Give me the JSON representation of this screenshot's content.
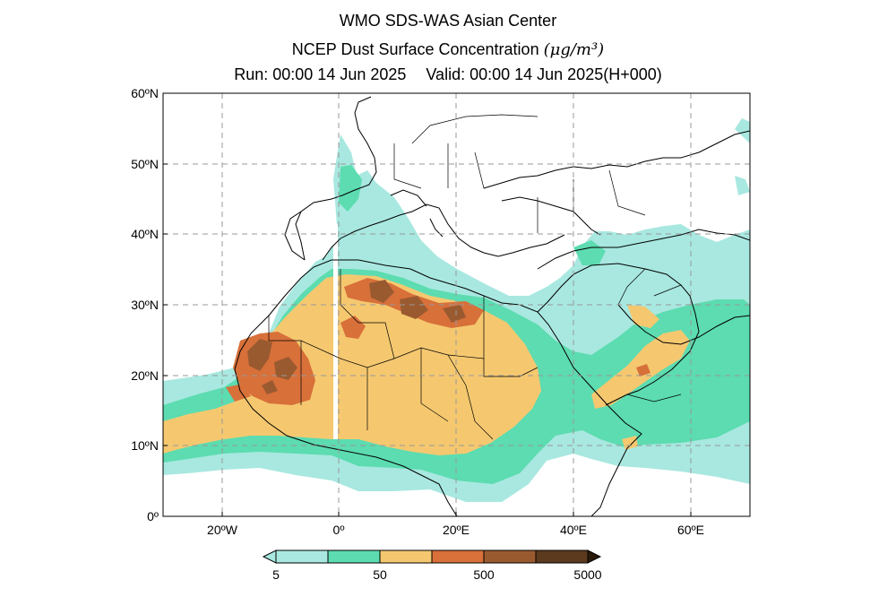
{
  "header": {
    "line1": "WMO SDS-WAS Asian Center",
    "line2_prefix": "NCEP Dust Surface Concentration ",
    "line2_unit": "(μg/m³)",
    "run": "Run: 00:00 14 Jun 2025",
    "valid": "Valid: 00:00 14 Jun 2025(H+000)"
  },
  "map": {
    "lon_range": [
      -30,
      70
    ],
    "lat_range": [
      0,
      60
    ],
    "grid": "dashed",
    "lat_labels": [
      "60ºN",
      "50ºN",
      "40ºN",
      "30ºN",
      "20ºN",
      "10ºN",
      "0º"
    ],
    "lon_labels": [
      "20ºW",
      "0º",
      "20ºE",
      "40ºE",
      "60ºE"
    ]
  },
  "colorbar": {
    "labels": [
      "5",
      "50",
      "500",
      "5000"
    ],
    "colors": [
      "#a8e8e0",
      "#5cdcb0",
      "#f5c870",
      "#d8703a",
      "#9a5a30",
      "#5c3a1e",
      "#2a1a0c"
    ]
  }
}
